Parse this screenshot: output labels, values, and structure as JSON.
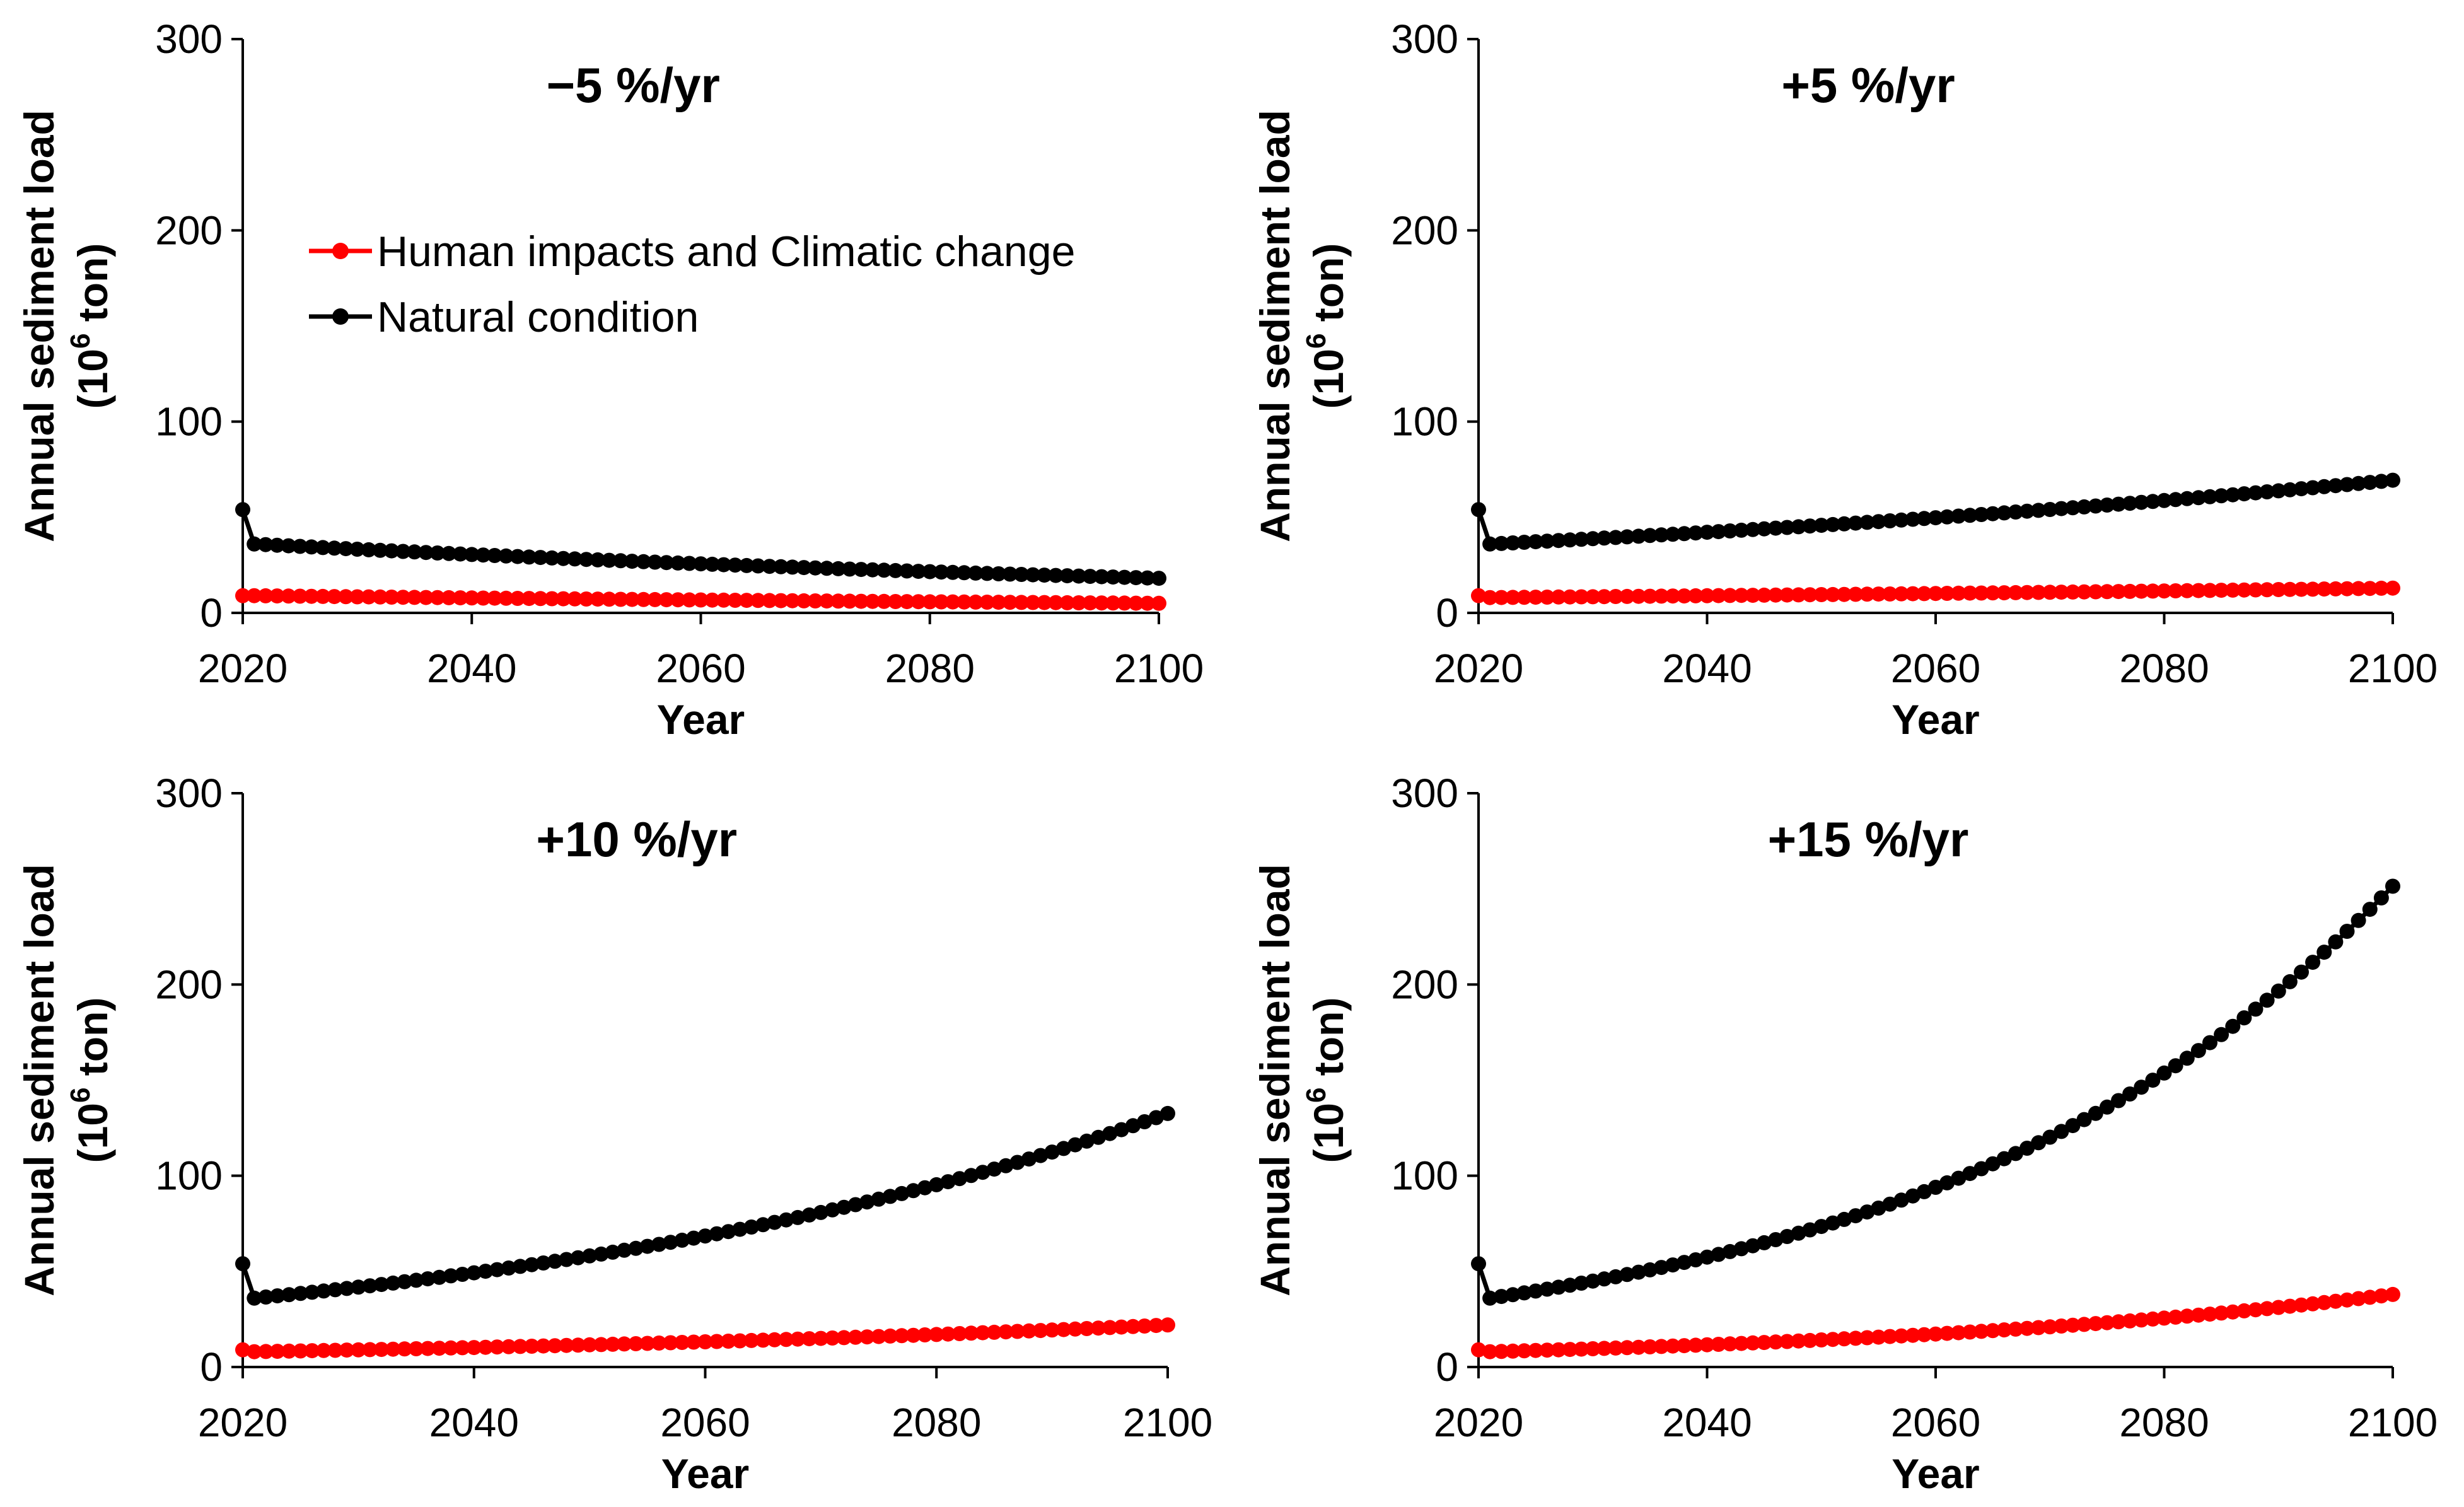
{
  "legend": [
    {
      "label": "Human impacts and Climatic change",
      "color": "#ff0000"
    },
    {
      "label": "Natural condition",
      "color": "#000000"
    }
  ],
  "chart_data": [
    {
      "type": "line",
      "title": "−5 %/yr",
      "xlabel": "Year",
      "ylabel": "Annual sediment load",
      "ylabel_line2_prefix": "(10",
      "ylabel_line2_sup": "6",
      "ylabel_line2_suffix": " ton)",
      "xlim": [
        2020,
        2100
      ],
      "ylim": [
        0,
        300
      ],
      "xticks": [
        2020,
        2040,
        2060,
        2080,
        2100
      ],
      "yticks": [
        0,
        100,
        200,
        300
      ],
      "series": [
        {
          "name": "Human impacts and Climatic change",
          "color": "#ff0000",
          "first": [
            2020,
            9
          ],
          "start": [
            2021,
            9
          ],
          "end": [
            2100,
            5
          ],
          "rate": -0.0074
        },
        {
          "name": "Natural condition",
          "color": "#000000",
          "first": [
            2020,
            54
          ],
          "start": [
            2021,
            36
          ],
          "end": [
            2100,
            18
          ],
          "rate": -0.0087
        }
      ]
    },
    {
      "type": "line",
      "title": "+5 %/yr",
      "xlabel": "Year",
      "ylabel": "Annual sediment load",
      "ylabel_line2_prefix": "(10",
      "ylabel_line2_sup": "6",
      "ylabel_line2_suffix": " ton)",
      "xlim": [
        2020,
        2100
      ],
      "ylim": [
        0,
        300
      ],
      "xticks": [
        2020,
        2040,
        2060,
        2080,
        2100
      ],
      "yticks": [
        0,
        100,
        200,
        300
      ],
      "series": [
        {
          "name": "Human impacts and Climatic change",
          "color": "#ff0000",
          "first": [
            2020,
            9
          ],
          "start": [
            2021,
            8
          ],
          "end": [
            2100,
            13
          ],
          "rate": 0.0061
        },
        {
          "name": "Natural condition",
          "color": "#000000",
          "first": [
            2020,
            54
          ],
          "start": [
            2021,
            36
          ],
          "end": [
            2100,
            69
          ],
          "rate": 0.0083
        }
      ]
    },
    {
      "type": "line",
      "title": "+10 %/yr",
      "xlabel": "Year",
      "ylabel": "Annual sediment load",
      "ylabel_line2_prefix": "(10",
      "ylabel_line2_sup": "6",
      "ylabel_line2_suffix": " ton)",
      "xlim": [
        2020,
        2100
      ],
      "ylim": [
        0,
        300
      ],
      "xticks": [
        2020,
        2040,
        2060,
        2080,
        2100
      ],
      "yticks": [
        0,
        100,
        200,
        300
      ],
      "series": [
        {
          "name": "Human impacts and Climatic change",
          "color": "#ff0000",
          "first": [
            2020,
            9
          ],
          "start": [
            2021,
            8
          ],
          "end": [
            2100,
            22
          ],
          "rate": 0.0128
        },
        {
          "name": "Natural condition",
          "color": "#000000",
          "first": [
            2020,
            54
          ],
          "start": [
            2021,
            36
          ],
          "end": [
            2100,
            132
          ],
          "rate": 0.0165
        }
      ]
    },
    {
      "type": "line",
      "title": "+15 %/yr",
      "xlabel": "Year",
      "ylabel": "Annual sediment load",
      "ylabel_line2_prefix": "(10",
      "ylabel_line2_sup": "6",
      "ylabel_line2_suffix": " ton)",
      "xlim": [
        2020,
        2100
      ],
      "ylim": [
        0,
        300
      ],
      "xticks": [
        2020,
        2040,
        2060,
        2080,
        2100
      ],
      "yticks": [
        0,
        100,
        200,
        300
      ],
      "series": [
        {
          "name": "Human impacts and Climatic change",
          "color": "#ff0000",
          "first": [
            2020,
            9
          ],
          "start": [
            2021,
            8
          ],
          "end": [
            2100,
            38
          ],
          "rate": 0.0197
        },
        {
          "name": "Natural condition",
          "color": "#000000",
          "first": [
            2020,
            54
          ],
          "start": [
            2021,
            36
          ],
          "end": [
            2100,
            251
          ],
          "rate": 0.0246
        }
      ]
    }
  ]
}
